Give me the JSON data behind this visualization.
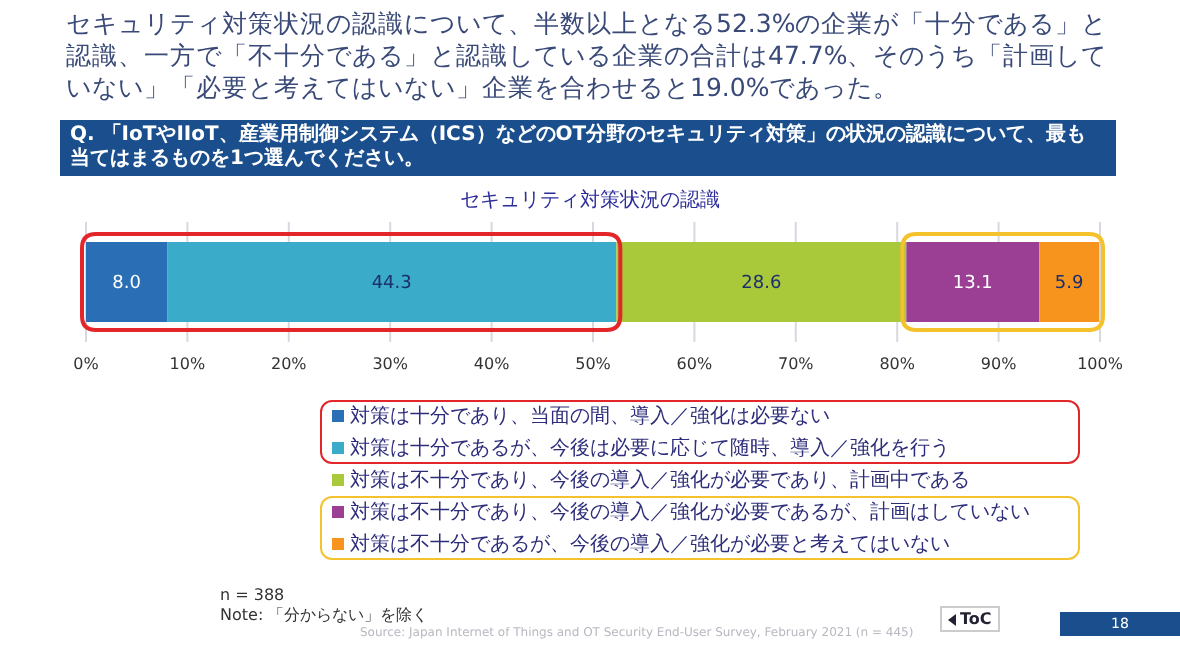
{
  "chart_data": {
    "type": "bar",
    "orientation": "horizontal",
    "stacked": true,
    "title": "セキュリティ対策状況の認識",
    "subtitle": "Q. 「IoTやIIoT、産業用制御システム（ICS）などのOT分野のセキュリティ対策」の状況の認識について、最も当てはまるものを1つ選んでください。",
    "categories": [
      null
    ],
    "series": [
      {
        "name": "対策は十分であり、当面の間、導入／強化は必要ない",
        "color": "#2a6fb5",
        "values": [
          8.0
        ],
        "value_labels": [
          "8.0"
        ]
      },
      {
        "name": "対策は十分であるが、今後は必要に応じて随時、導入／強化を行う",
        "color": "#3aabc8",
        "values": [
          44.3
        ],
        "value_labels": [
          "44.3"
        ]
      },
      {
        "name": "対策は不十分であり、今後の導入／強化が必要であり、計画中である",
        "color": "#a9c83a",
        "values": [
          28.6
        ],
        "value_labels": [
          "28.6"
        ]
      },
      {
        "name": "対策は不十分であり、今後の導入／強化が必要であるが、計画はしていない",
        "color": "#9b3f94",
        "values": [
          13.1
        ],
        "value_labels": [
          "13.1"
        ]
      },
      {
        "name": "対策は不十分であるが、今後の導入／強化が必要と考えてはいない",
        "color": "#f7941d",
        "values": [
          5.9
        ],
        "value_labels": [
          "5.9"
        ]
      }
    ],
    "xlim": [
      0,
      100
    ],
    "xticks": [
      {
        "value": 0,
        "label": "0%"
      },
      {
        "value": 10,
        "label": "10%"
      },
      {
        "value": 20,
        "label": "20%"
      },
      {
        "value": 30,
        "label": "30%"
      },
      {
        "value": 40,
        "label": "40%"
      },
      {
        "value": 50,
        "label": "50%"
      },
      {
        "value": 60,
        "label": "60%"
      },
      {
        "value": 70,
        "label": "70%"
      },
      {
        "value": 80,
        "label": "80%"
      },
      {
        "value": 90,
        "label": "90%"
      },
      {
        "value": 100,
        "label": "100%"
      }
    ],
    "grid": "x",
    "legend": "bottom",
    "tick_labels": "x",
    "annotations": [
      "セキュリティ対策状況の認識について、半数以上となる52.3%の企業が「十分である」と認識、一方で「不十分である」と認識している企業の合計は47.7%、そのうち「計画していない」「必要と考えてはいない」企業を合わせると19.0%であった。",
      "n = 388",
      "Note: 「分からない」を除く",
      "Source: Japan Internet of Things and OT Security End-User Survey, February 2021 (n = 445)",
      "ToC",
      "18"
    ]
  }
}
